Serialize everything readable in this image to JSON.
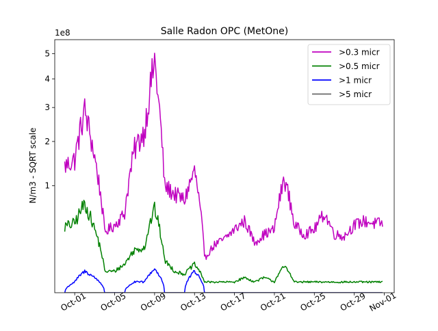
{
  "chart_data": {
    "type": "line",
    "title": "Salle Radon OPC (MetOne)",
    "ylabel": "N/m3 - SQRT scale",
    "xlabel": "",
    "y_scale": "sqrt",
    "y_offset_text": "1e8",
    "y_unit_multiplier": 100000000,
    "xlim": [
      "2023-09-29",
      "2023-11-02"
    ],
    "ylim": [
      0,
      5.6
    ],
    "x_ticks": [
      "2023-10-01",
      "2023-10-05",
      "2023-10-09",
      "2023-10-13",
      "2023-10-17",
      "2023-10-21",
      "2023-10-25",
      "2023-10-29",
      "2023-11-01"
    ],
    "x_tick_labels": [
      "Oct-01",
      "Oct-05",
      "Oct-09",
      "Oct-13",
      "Oct-17",
      "Oct-21",
      "Oct-25",
      "Oct-29",
      "Nov-01"
    ],
    "y_ticks": [
      1,
      2,
      3,
      4,
      5
    ],
    "y_tick_labels": [
      "1",
      "2",
      "3",
      "4",
      "5"
    ],
    "grid": false,
    "legend_position": "top-right",
    "x": [
      "2023-09-30",
      "2023-10-01",
      "2023-10-02",
      "2023-10-03",
      "2023-10-04",
      "2023-10-05",
      "2023-10-06",
      "2023-10-07",
      "2023-10-08",
      "2023-10-09",
      "2023-10-10",
      "2023-10-11",
      "2023-10-12",
      "2023-10-13",
      "2023-10-14",
      "2023-10-15",
      "2023-10-16",
      "2023-10-17",
      "2023-10-18",
      "2023-10-19",
      "2023-10-20",
      "2023-10-21",
      "2023-10-22",
      "2023-10-23",
      "2023-10-24",
      "2023-10-25",
      "2023-10-26",
      "2023-10-27",
      "2023-10-28",
      "2023-10-29",
      "2023-10-30",
      "2023-10-31"
    ],
    "series": [
      {
        "name": ">0.3 micr",
        "color": "#bf00bf",
        "values": [
          1.4,
          1.55,
          2.9,
          1.6,
          0.32,
          0.4,
          0.55,
          1.8,
          2.3,
          4.7,
          1.0,
          0.85,
          0.75,
          1.3,
          0.1,
          0.2,
          0.25,
          0.35,
          0.45,
          0.22,
          0.3,
          0.35,
          1.15,
          0.4,
          0.3,
          0.35,
          0.55,
          0.3,
          0.28,
          0.4,
          0.45,
          0.42
        ]
      },
      {
        "name": ">0.5 micr",
        "color": "#008000",
        "values": [
          0.38,
          0.42,
          0.7,
          0.35,
          0.04,
          0.04,
          0.07,
          0.16,
          0.18,
          0.62,
          0.09,
          0.04,
          0.03,
          0.07,
          0.01,
          0.01,
          0.01,
          0.01,
          0.02,
          0.01,
          0.02,
          0.01,
          0.06,
          0.01,
          0.01,
          0.01,
          0.01,
          0.01,
          0.01,
          0.01,
          0.01,
          0.01
        ]
      },
      {
        "name": ">1 micr",
        "color": "#0000ff",
        "values": [
          0.0,
          0.01,
          0.04,
          0.02,
          0.0,
          0.0,
          0.0,
          0.01,
          0.01,
          0.05,
          0.0,
          0.0,
          0.0,
          0.04,
          0.0,
          0.0,
          0.0,
          0.0,
          0.0,
          0.0,
          0.0,
          0.0,
          0.0,
          0.0,
          0.0,
          0.0,
          0.0,
          0.0,
          0.0,
          0.0,
          0.0,
          0.0
        ]
      },
      {
        "name": ">5 micr",
        "color": "#696969",
        "values": [
          0,
          0,
          0,
          0,
          0,
          0,
          0,
          0,
          0,
          0,
          0,
          0,
          0,
          0,
          0,
          0,
          0,
          0,
          0,
          0,
          0,
          0,
          0,
          0,
          0,
          0,
          0,
          0,
          0,
          0,
          0,
          0
        ]
      }
    ]
  }
}
